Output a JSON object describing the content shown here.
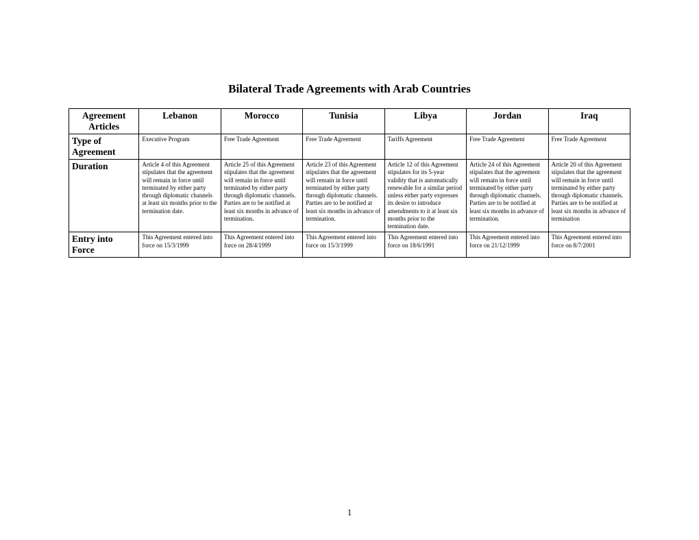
{
  "title": "Bilateral Trade Agreements with Arab Countries",
  "page_number": "1",
  "table": {
    "columns": [
      "Agreement Articles",
      "Lebanon",
      "Morocco",
      "Tunisia",
      "Libya",
      "Jordan",
      "Iraq"
    ],
    "rows": [
      {
        "header": "Type of Agreement",
        "cells": [
          "Executive Program",
          "Free Trade Agreement",
          "Free Trade Agreement",
          "Tariffs Agreement",
          "Free Trade Agreement",
          "Free Trade Agreement"
        ]
      },
      {
        "header": "Duration",
        "cells": [
          "Article 4 of this Agreement stipulates that the agreement will remain in force until terminated by either party through diplomatic channels at least six months prior to  the termination date.",
          "Article 25 of this Agreement stipulates that the agreement will remain in force until terminated by either party through diplomatic channels. Parties are to be notified at least six months in advance of termination.",
          "Article 23 of this Agreement stipulates that the agreement will remain in force until terminated by either party through diplomatic channels. Parties are to be notified at least six months in advance of termination.",
          "Article 12 of this Agreement stipulates for its 5-year validity that is automatically renewable for a similar period unless either party expresses its desire to introduce amendments to it at least six months prior to the termination date.",
          "Article 24 of this Agreement stipulates that the agreement will remain in force until terminated by either party through diplomatic channels. Parties are to be notified at least six months in advance of termination.",
          "Article 20 of this Agreement stipulates that the agreement will remain in force until terminated by either party through diplomatic channels. Parties are to be notified at least six months in advance of  termination"
        ]
      },
      {
        "header": "Entry into Force",
        "cells": [
          "This Agreement entered into force on 15/3/1999",
          "This Agreement entered into force on 28/4/1999",
          "This Agreement entered into force on 15/3/1999",
          "This Agreement entered into force on 18/6/1991",
          "This Agreement entered into force on 21/12/1999",
          "This Agreement entered into force on 8/7/2001"
        ]
      }
    ]
  }
}
